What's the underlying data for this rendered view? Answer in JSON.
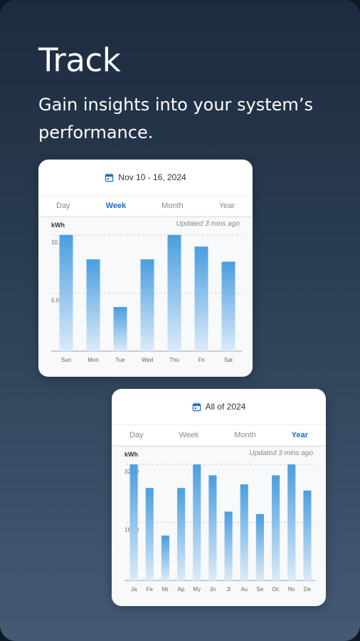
{
  "headline": "Track",
  "subhead": "Gain insights into your system’s performance.",
  "tabs": [
    "Day",
    "Week",
    "Month",
    "Year"
  ],
  "colors": {
    "bar_top": "#4a9ee0",
    "bar_bottom": "#dbeaf8",
    "active_tab": "#1b6fbf"
  },
  "week_card": {
    "date_label": "Nov 10 - 16, 2024",
    "active_tab": "Week",
    "unit": "kWh",
    "updated": "Updated 3 mins ago",
    "calendar_icon": "calendar-icon",
    "chart_data": {
      "type": "bar",
      "categories": [
        "Sun",
        "Mon",
        "Tue",
        "Wed",
        "Thu",
        "Fri",
        "Sat"
      ],
      "values": [
        10.0,
        7.9,
        3.8,
        7.9,
        10.0,
        9.0,
        7.7
      ],
      "yticks": [
        {
          "value": 5.0,
          "label": "5.0"
        },
        {
          "value": 10.0,
          "label": "10.0"
        }
      ],
      "ylim": [
        0,
        10.3
      ],
      "xlabel": "",
      "ylabel": "kWh",
      "grid": "dashed"
    }
  },
  "year_card": {
    "date_label": "All of 2024",
    "active_tab": "Year",
    "unit": "kWh",
    "updated": "Updated 3 mins ago",
    "calendar_icon": "calendar-icon",
    "chart_data": {
      "type": "bar",
      "categories": [
        "Ja",
        "Fe",
        "Mr",
        "Ap",
        "My",
        "Jn",
        "Jl",
        "Au",
        "Se",
        "Oc",
        "Nv",
        "De"
      ],
      "values": [
        320,
        255,
        124,
        255,
        320,
        290,
        190,
        265,
        183,
        290,
        320,
        248
      ],
      "yticks": [
        {
          "value": 160,
          "label": "160.0"
        },
        {
          "value": 320,
          "label": "320.0"
        }
      ],
      "ylim": [
        0,
        330
      ],
      "xlabel": "",
      "ylabel": "kWh",
      "grid": "dashed"
    }
  }
}
